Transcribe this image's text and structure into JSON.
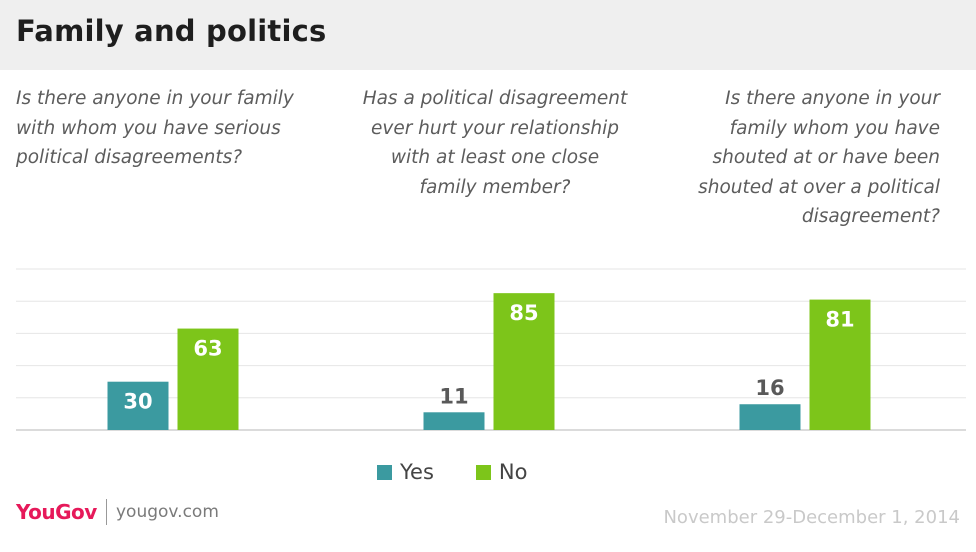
{
  "title": "Family and politics",
  "questions": [
    "Is there anyone in your family with whom you have serious political disagreements?",
    "Has a political disagreement ever hurt your relationship with at least one close family member?",
    "Is there anyone in your family whom you have shouted at or have been shouted at over a political disagreement?"
  ],
  "legend": {
    "yes": "Yes",
    "no": "No"
  },
  "footer": {
    "brand": "YouGov",
    "site": "yougov.com",
    "date": "November 29-December 1, 2014"
  },
  "colors": {
    "yes": "#3b9aa0",
    "no": "#7dc51a",
    "header_bg": "#efefef",
    "brand": "#e6195a"
  },
  "chart_data": {
    "type": "bar",
    "categories": [
      "Is there anyone in your family with whom you have serious political disagreements?",
      "Has a political disagreement ever hurt your relationship with at least one close family member?",
      "Is there anyone in your family whom you have shouted at or have been shouted at over a political disagreement?"
    ],
    "series": [
      {
        "name": "Yes",
        "values": [
          30,
          11,
          16
        ]
      },
      {
        "name": "No",
        "values": [
          63,
          85,
          81
        ]
      }
    ],
    "ylim": [
      0,
      100
    ],
    "grid": true,
    "legend": "bottom"
  }
}
